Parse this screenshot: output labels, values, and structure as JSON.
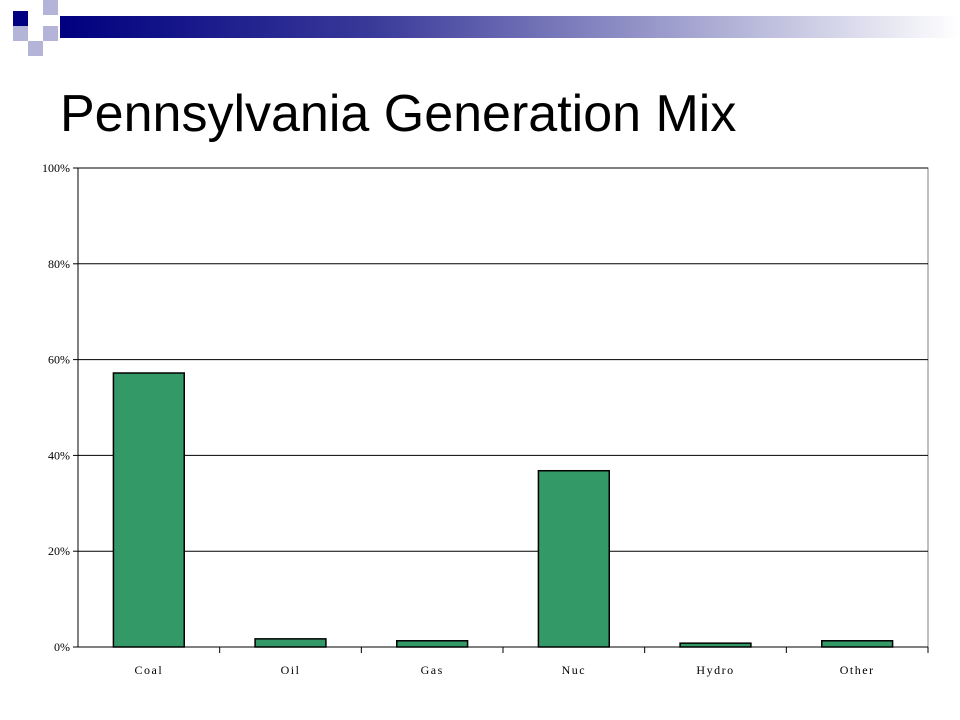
{
  "slide": {
    "title": "Pennsylvania Generation Mix"
  },
  "colors": {
    "bar_fill": "#339966",
    "bar_stroke": "#000000",
    "decor_dark": "#000080",
    "decor_light": "#b4b4d8"
  },
  "chart_data": {
    "type": "bar",
    "categories": [
      "Coal",
      "Oil",
      "Gas",
      "Nuc",
      "Hydro",
      "Other"
    ],
    "values": [
      57.2,
      1.7,
      1.3,
      36.8,
      0.8,
      1.3
    ],
    "value_unit": "%",
    "ylim": [
      0,
      100
    ],
    "yticks": [
      0,
      20,
      40,
      60,
      80,
      100
    ],
    "ytick_labels": [
      "0%",
      "20%",
      "40%",
      "60%",
      "80%",
      "100%"
    ],
    "grid": true,
    "legend": "none",
    "title": "",
    "xlabel": "",
    "ylabel": ""
  }
}
